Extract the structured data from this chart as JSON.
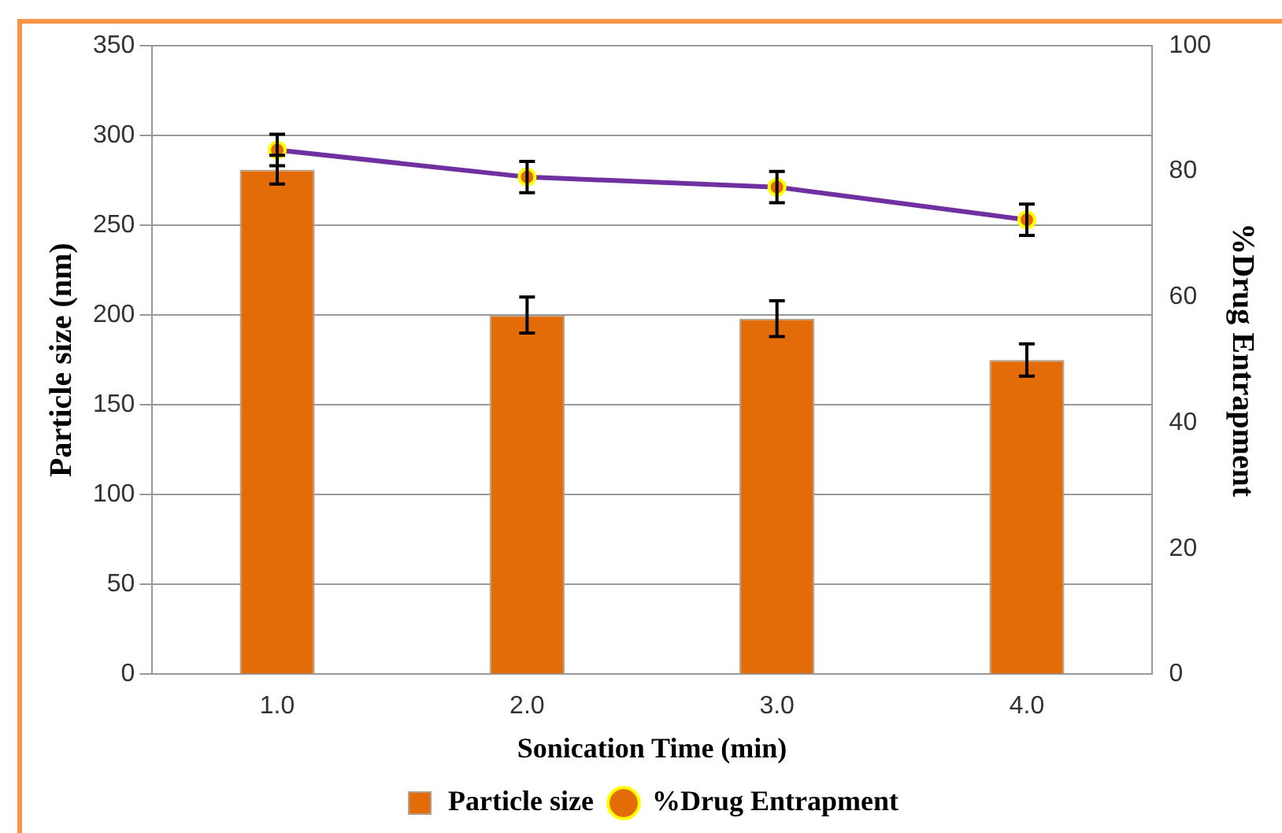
{
  "chart_data": {
    "type": "bar",
    "xlabel": "Sonication Time (min)",
    "ylabel": "Particle size (nm)",
    "y2label": "%Drug Entrapment",
    "categories": [
      "1.0",
      "2.0",
      "3.0",
      "4.0"
    ],
    "series": [
      {
        "name": "Particle size",
        "color": "#e36c09",
        "values": [
          281,
          200,
          198,
          175
        ],
        "errors": [
          8,
          10,
          10,
          9
        ]
      },
      {
        "name": "%Drug Entrapment",
        "type": "line",
        "axis": "y2",
        "color": "#7030a0",
        "values": [
          83.4,
          79.1,
          77.5,
          72.3
        ],
        "errors": [
          2.5,
          2.5,
          2.5,
          2.5
        ]
      }
    ],
    "ylim": [
      0,
      350
    ],
    "yticks": [
      0,
      50,
      100,
      150,
      200,
      250,
      300,
      350
    ],
    "y2lim": [
      0,
      100
    ],
    "y2ticks": [
      0,
      20,
      40,
      60,
      80,
      100
    ],
    "grid": "y",
    "legend": "bottom",
    "marker": "circle",
    "line_style": "solid"
  }
}
